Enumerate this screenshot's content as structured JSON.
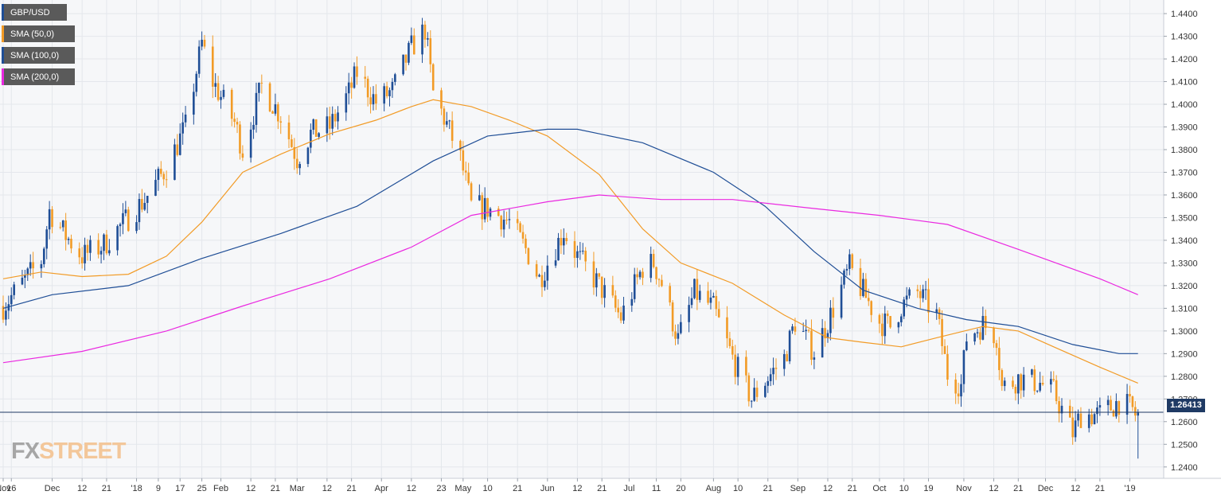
{
  "chart_data": {
    "type": "candlestick",
    "title": "",
    "instrument": "GBP/USD",
    "timeframe": "daily",
    "date_range": [
      "2017-11-13",
      "2019-01-07"
    ],
    "ylim": [
      1.235,
      1.446
    ],
    "grid": true,
    "y_ticks": [
      "1.4400",
      "1.4300",
      "1.4200",
      "1.4100",
      "1.4000",
      "1.3900",
      "1.3800",
      "1.3700",
      "1.3600",
      "1.3500",
      "1.3400",
      "1.3300",
      "1.3200",
      "1.3100",
      "1.3000",
      "1.2900",
      "1.2800",
      "1.2700",
      "1.2600",
      "1.2500",
      "1.2400"
    ],
    "x_ticks": [
      {
        "label": "Nov",
        "date": "2017-11-13"
      },
      {
        "label": "16",
        "date": "2017-11-16"
      },
      {
        "label": "Dec",
        "date": "2017-12-01"
      },
      {
        "label": "12",
        "date": "2017-12-12"
      },
      {
        "label": "21",
        "date": "2017-12-21"
      },
      {
        "label": "'18",
        "date": "2018-01-01"
      },
      {
        "label": "9",
        "date": "2018-01-09"
      },
      {
        "label": "17",
        "date": "2018-01-17"
      },
      {
        "label": "25",
        "date": "2018-01-25"
      },
      {
        "label": "Feb",
        "date": "2018-02-01"
      },
      {
        "label": "12",
        "date": "2018-02-12"
      },
      {
        "label": "21",
        "date": "2018-02-21"
      },
      {
        "label": "Mar",
        "date": "2018-03-01"
      },
      {
        "label": "12",
        "date": "2018-03-12"
      },
      {
        "label": "21",
        "date": "2018-03-21"
      },
      {
        "label": "Apr",
        "date": "2018-04-01"
      },
      {
        "label": "12",
        "date": "2018-04-12"
      },
      {
        "label": "23",
        "date": "2018-04-23"
      },
      {
        "label": "May",
        "date": "2018-05-01"
      },
      {
        "label": "10",
        "date": "2018-05-10"
      },
      {
        "label": "21",
        "date": "2018-05-21"
      },
      {
        "label": "Jun",
        "date": "2018-06-01"
      },
      {
        "label": "12",
        "date": "2018-06-12"
      },
      {
        "label": "21",
        "date": "2018-06-21"
      },
      {
        "label": "Jul",
        "date": "2018-07-01"
      },
      {
        "label": "11",
        "date": "2018-07-11"
      },
      {
        "label": "20",
        "date": "2018-07-20"
      },
      {
        "label": "Aug",
        "date": "2018-08-01"
      },
      {
        "label": "10",
        "date": "2018-08-10"
      },
      {
        "label": "21",
        "date": "2018-08-21"
      },
      {
        "label": "Sep",
        "date": "2018-09-01"
      },
      {
        "label": "12",
        "date": "2018-09-12"
      },
      {
        "label": "21",
        "date": "2018-09-21"
      },
      {
        "label": "Oct",
        "date": "2018-10-01"
      },
      {
        "label": "10",
        "date": "2018-10-10"
      },
      {
        "label": "19",
        "date": "2018-10-19"
      },
      {
        "label": "Nov",
        "date": "2018-11-01"
      },
      {
        "label": "12",
        "date": "2018-11-12"
      },
      {
        "label": "21",
        "date": "2018-11-21"
      },
      {
        "label": "Dec",
        "date": "2018-12-01"
      },
      {
        "label": "12",
        "date": "2018-12-12"
      },
      {
        "label": "21",
        "date": "2018-12-21"
      },
      {
        "label": "'19",
        "date": "2019-01-01"
      }
    ],
    "current_price": 1.26413,
    "current_price_label": "1.26413",
    "colors": {
      "bull": "#1f4e96",
      "bear": "#f29b26",
      "sma50": "#f29b26",
      "sma100": "#1f4e96",
      "sma200": "#ea28e0",
      "price_line": "#1f3a64",
      "grid": "#e4e7ec"
    },
    "series": [
      {
        "name": "GBP/USD",
        "kind": "price",
        "color": "#1f4e96",
        "points": [
          [
            "2017-11-13",
            1.311
          ],
          [
            "2017-11-27",
            1.331
          ],
          [
            "2017-11-30",
            1.353
          ],
          [
            "2017-12-06",
            1.342
          ],
          [
            "2017-12-12",
            1.333
          ],
          [
            "2017-12-20",
            1.338
          ],
          [
            "2017-12-29",
            1.35
          ],
          [
            "2018-01-04",
            1.358
          ],
          [
            "2018-01-12",
            1.372
          ],
          [
            "2018-01-19",
            1.39
          ],
          [
            "2018-01-25",
            1.427
          ],
          [
            "2018-01-29",
            1.41
          ],
          [
            "2018-02-06",
            1.392
          ],
          [
            "2018-02-09",
            1.38
          ],
          [
            "2018-02-16",
            1.408
          ],
          [
            "2018-02-23",
            1.395
          ],
          [
            "2018-03-01",
            1.376
          ],
          [
            "2018-03-06",
            1.387
          ],
          [
            "2018-03-13",
            1.39
          ],
          [
            "2018-03-20",
            1.405
          ],
          [
            "2018-03-23",
            1.414
          ],
          [
            "2018-03-30",
            1.401
          ],
          [
            "2018-04-05",
            1.406
          ],
          [
            "2018-04-12",
            1.425
          ],
          [
            "2018-04-17",
            1.433
          ],
          [
            "2018-04-20",
            1.405
          ],
          [
            "2018-04-24",
            1.394
          ],
          [
            "2018-04-30",
            1.376
          ],
          [
            "2018-05-04",
            1.355
          ],
          [
            "2018-05-10",
            1.354
          ],
          [
            "2018-05-18",
            1.348
          ],
          [
            "2018-05-25",
            1.334
          ],
          [
            "2018-05-29",
            1.323
          ],
          [
            "2018-06-07",
            1.344
          ],
          [
            "2018-06-12",
            1.333
          ],
          [
            "2018-06-20",
            1.32
          ],
          [
            "2018-06-28",
            1.306
          ],
          [
            "2018-07-06",
            1.328
          ],
          [
            "2018-07-10",
            1.33
          ],
          [
            "2018-07-13",
            1.321
          ],
          [
            "2018-07-19",
            1.296
          ],
          [
            "2018-07-25",
            1.317
          ],
          [
            "2018-08-01",
            1.31
          ],
          [
            "2018-08-08",
            1.288
          ],
          [
            "2018-08-15",
            1.27
          ],
          [
            "2018-08-20",
            1.278
          ],
          [
            "2018-08-27",
            1.288
          ],
          [
            "2018-08-31",
            1.304
          ],
          [
            "2018-09-07",
            1.291
          ],
          [
            "2018-09-12",
            1.304
          ],
          [
            "2018-09-20",
            1.328
          ],
          [
            "2018-09-25",
            1.317
          ],
          [
            "2018-10-01",
            1.304
          ],
          [
            "2018-10-05",
            1.302
          ],
          [
            "2018-10-09",
            1.311
          ],
          [
            "2018-10-15",
            1.317
          ],
          [
            "2018-10-22",
            1.307
          ],
          [
            "2018-10-26",
            1.281
          ],
          [
            "2018-10-31",
            1.276
          ],
          [
            "2018-11-02",
            1.297
          ],
          [
            "2018-11-08",
            1.303
          ],
          [
            "2018-11-13",
            1.298
          ],
          [
            "2018-11-15",
            1.275
          ],
          [
            "2018-11-21",
            1.279
          ],
          [
            "2018-11-29",
            1.277
          ],
          [
            "2018-12-04",
            1.273
          ],
          [
            "2018-12-11",
            1.255
          ],
          [
            "2018-12-14",
            1.263
          ],
          [
            "2018-12-21",
            1.263
          ],
          [
            "2018-12-28",
            1.269
          ],
          [
            "2019-01-02",
            1.265
          ],
          [
            "2019-01-03",
            1.263
          ],
          [
            "2019-01-04",
            1.265
          ]
        ]
      },
      {
        "name": "SMA (50,0)",
        "kind": "line",
        "color": "#f29b26",
        "points": [
          [
            "2017-11-13",
            1.323
          ],
          [
            "2017-11-27",
            1.326
          ],
          [
            "2017-12-12",
            1.324
          ],
          [
            "2017-12-29",
            1.325
          ],
          [
            "2018-01-12",
            1.333
          ],
          [
            "2018-01-25",
            1.348
          ],
          [
            "2018-02-09",
            1.37
          ],
          [
            "2018-02-23",
            1.378
          ],
          [
            "2018-03-13",
            1.387
          ],
          [
            "2018-03-30",
            1.393
          ],
          [
            "2018-04-12",
            1.399
          ],
          [
            "2018-04-20",
            1.402
          ],
          [
            "2018-05-04",
            1.399
          ],
          [
            "2018-05-18",
            1.393
          ],
          [
            "2018-06-01",
            1.386
          ],
          [
            "2018-06-20",
            1.369
          ],
          [
            "2018-07-06",
            1.345
          ],
          [
            "2018-07-20",
            1.33
          ],
          [
            "2018-08-08",
            1.321
          ],
          [
            "2018-08-27",
            1.307
          ],
          [
            "2018-09-12",
            1.297
          ],
          [
            "2018-09-25",
            1.295
          ],
          [
            "2018-10-09",
            1.293
          ],
          [
            "2018-10-22",
            1.297
          ],
          [
            "2018-11-08",
            1.302
          ],
          [
            "2018-11-21",
            1.3
          ],
          [
            "2018-12-04",
            1.293
          ],
          [
            "2018-12-21",
            1.284
          ],
          [
            "2019-01-04",
            1.277
          ]
        ]
      },
      {
        "name": "SMA (100,0)",
        "kind": "line",
        "color": "#1f4e96",
        "points": [
          [
            "2017-11-13",
            1.31
          ],
          [
            "2017-12-01",
            1.316
          ],
          [
            "2017-12-29",
            1.32
          ],
          [
            "2018-01-25",
            1.332
          ],
          [
            "2018-02-23",
            1.343
          ],
          [
            "2018-03-23",
            1.355
          ],
          [
            "2018-04-20",
            1.375
          ],
          [
            "2018-05-10",
            1.386
          ],
          [
            "2018-06-01",
            1.389
          ],
          [
            "2018-06-12",
            1.389
          ],
          [
            "2018-07-06",
            1.383
          ],
          [
            "2018-08-01",
            1.37
          ],
          [
            "2018-08-20",
            1.355
          ],
          [
            "2018-09-07",
            1.335
          ],
          [
            "2018-09-25",
            1.318
          ],
          [
            "2018-10-15",
            1.31
          ],
          [
            "2018-11-02",
            1.305
          ],
          [
            "2018-11-21",
            1.302
          ],
          [
            "2018-12-11",
            1.294
          ],
          [
            "2018-12-28",
            1.29
          ],
          [
            "2019-01-04",
            1.29
          ]
        ]
      },
      {
        "name": "SMA (200,0)",
        "kind": "line",
        "color": "#ea28e0",
        "points": [
          [
            "2017-11-13",
            1.286
          ],
          [
            "2017-12-12",
            1.291
          ],
          [
            "2018-01-12",
            1.3
          ],
          [
            "2018-02-09",
            1.311
          ],
          [
            "2018-03-13",
            1.323
          ],
          [
            "2018-04-12",
            1.337
          ],
          [
            "2018-05-04",
            1.351
          ],
          [
            "2018-06-01",
            1.357
          ],
          [
            "2018-06-20",
            1.36
          ],
          [
            "2018-07-13",
            1.358
          ],
          [
            "2018-08-08",
            1.358
          ],
          [
            "2018-09-07",
            1.354
          ],
          [
            "2018-10-01",
            1.351
          ],
          [
            "2018-10-26",
            1.347
          ],
          [
            "2018-11-21",
            1.336
          ],
          [
            "2018-12-21",
            1.323
          ],
          [
            "2019-01-04",
            1.316
          ]
        ]
      }
    ]
  },
  "legend": {
    "items": [
      {
        "label": "GBP/USD",
        "color": "#1f4e96"
      },
      {
        "label": "SMA (50,0)",
        "color": "#f29b26"
      },
      {
        "label": "SMA (100,0)",
        "color": "#1f4e96"
      },
      {
        "label": "SMA (200,0)",
        "color": "#ea28e0"
      }
    ]
  },
  "watermark": {
    "fx": "FX",
    "street": "STREET"
  }
}
